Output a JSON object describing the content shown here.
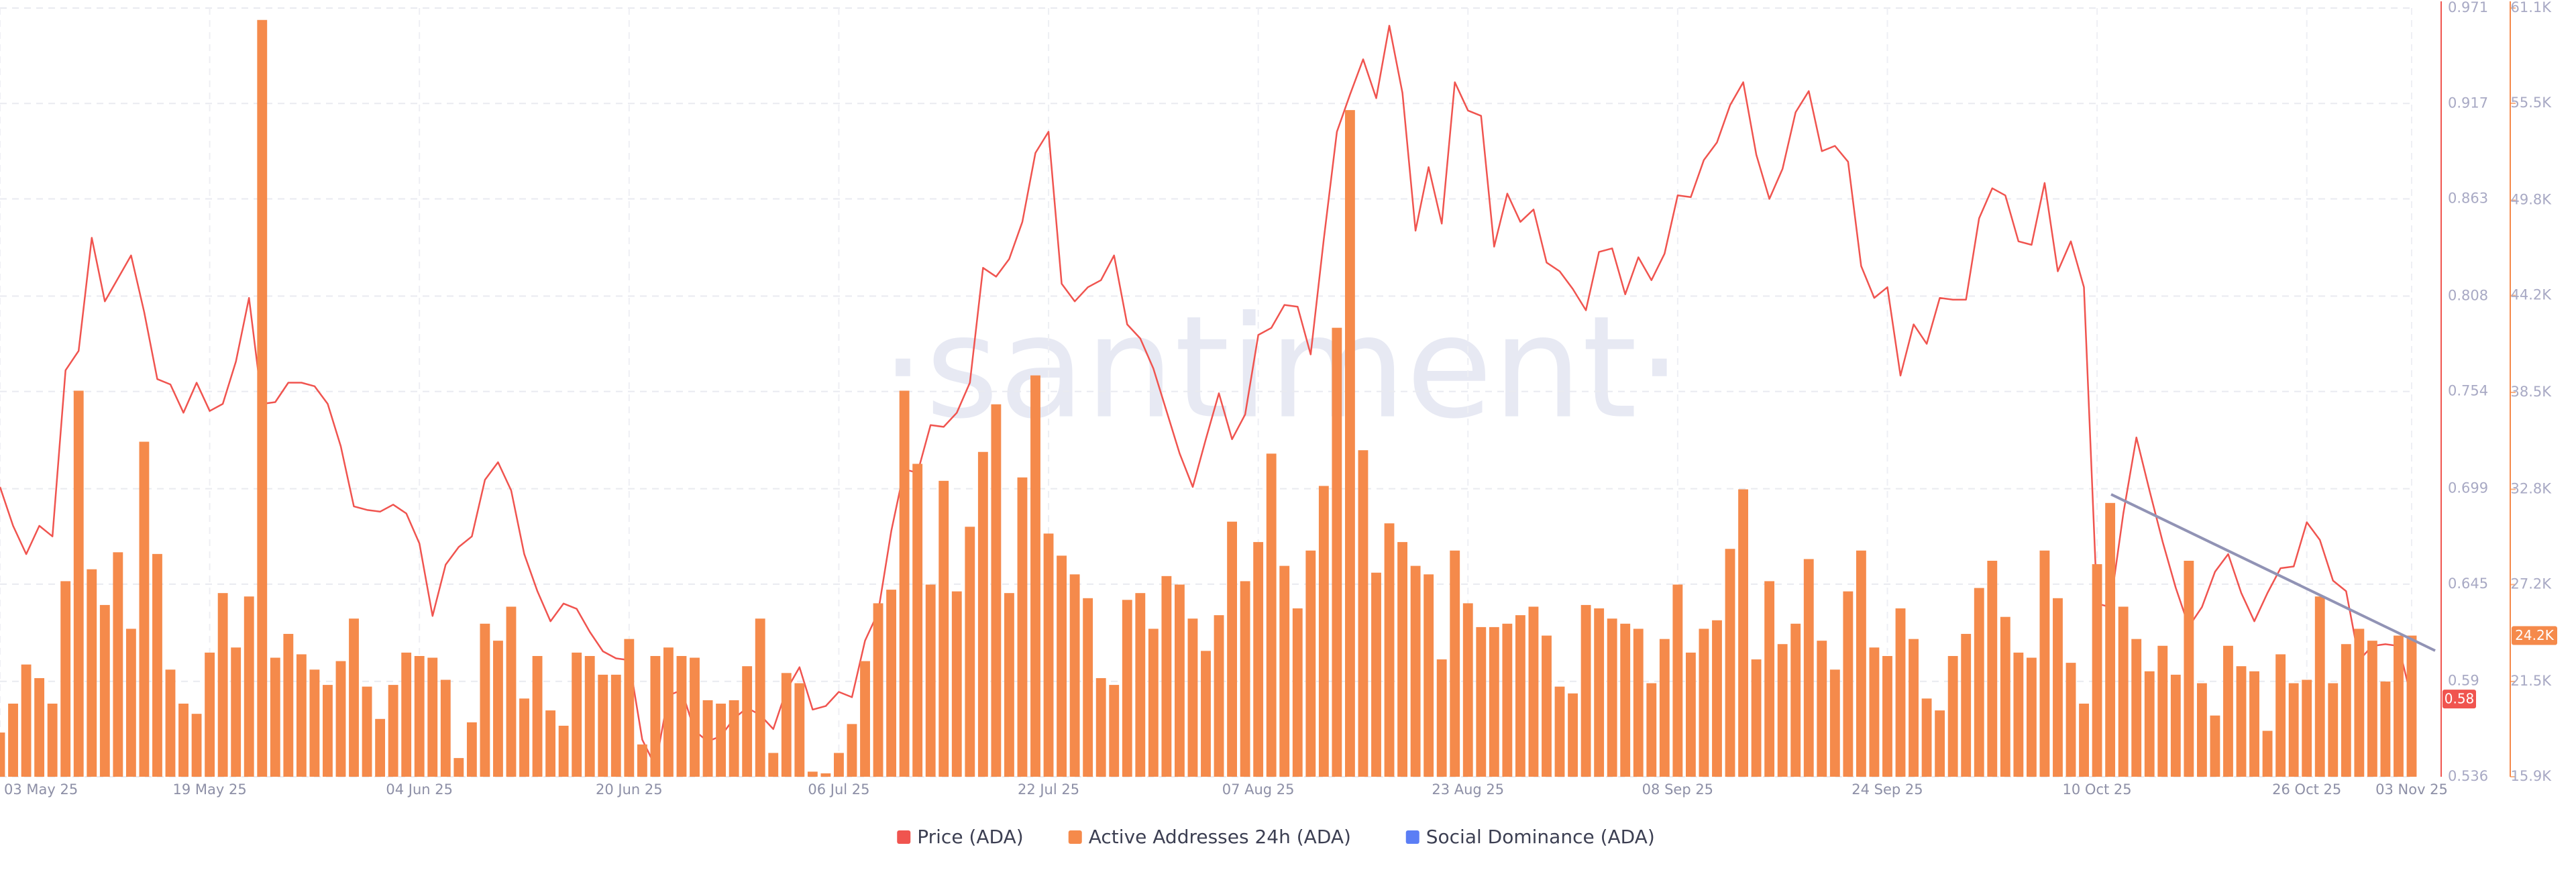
{
  "chart_data": {
    "type": "bar-line",
    "watermark": "·santiment·",
    "x": [
      "2025-05-03",
      "2025-05-04",
      "2025-05-05",
      "2025-05-06",
      "2025-05-07",
      "2025-05-08",
      "2025-05-09",
      "2025-05-10",
      "2025-05-11",
      "2025-05-12",
      "2025-05-13",
      "2025-05-14",
      "2025-05-15",
      "2025-05-16",
      "2025-05-17",
      "2025-05-18",
      "2025-05-19",
      "2025-05-20",
      "2025-05-21",
      "2025-05-22",
      "2025-05-23",
      "2025-05-24",
      "2025-05-25",
      "2025-05-26",
      "2025-05-27",
      "2025-05-28",
      "2025-05-29",
      "2025-05-30",
      "2025-05-31",
      "2025-06-01",
      "2025-06-02",
      "2025-06-03",
      "2025-06-04",
      "2025-06-05",
      "2025-06-06",
      "2025-06-07",
      "2025-06-08",
      "2025-06-09",
      "2025-06-10",
      "2025-06-11",
      "2025-06-12",
      "2025-06-13",
      "2025-06-14",
      "2025-06-15",
      "2025-06-16",
      "2025-06-17",
      "2025-06-18",
      "2025-06-19",
      "2025-06-20",
      "2025-06-21",
      "2025-06-22",
      "2025-06-23",
      "2025-06-24",
      "2025-06-25",
      "2025-06-26",
      "2025-06-27",
      "2025-06-28",
      "2025-06-29",
      "2025-06-30",
      "2025-07-01",
      "2025-07-02",
      "2025-07-03",
      "2025-07-04",
      "2025-07-05",
      "2025-07-06",
      "2025-07-07",
      "2025-07-08",
      "2025-07-09",
      "2025-07-10",
      "2025-07-11",
      "2025-07-12",
      "2025-07-13",
      "2025-07-14",
      "2025-07-15",
      "2025-07-16",
      "2025-07-17",
      "2025-07-18",
      "2025-07-19",
      "2025-07-20",
      "2025-07-21",
      "2025-07-22",
      "2025-07-23",
      "2025-07-24",
      "2025-07-25",
      "2025-07-26",
      "2025-07-27",
      "2025-07-28",
      "2025-07-29",
      "2025-07-30",
      "2025-07-31",
      "2025-08-01",
      "2025-08-02",
      "2025-08-03",
      "2025-08-04",
      "2025-08-05",
      "2025-08-06",
      "2025-08-07",
      "2025-08-08",
      "2025-08-09",
      "2025-08-10",
      "2025-08-11",
      "2025-08-12",
      "2025-08-13",
      "2025-08-14",
      "2025-08-15",
      "2025-08-16",
      "2025-08-17",
      "2025-08-18",
      "2025-08-19",
      "2025-08-20",
      "2025-08-21",
      "2025-08-22",
      "2025-08-23",
      "2025-08-24",
      "2025-08-25",
      "2025-08-26",
      "2025-08-27",
      "2025-08-28",
      "2025-08-29",
      "2025-08-30",
      "2025-08-31",
      "2025-09-01",
      "2025-09-02",
      "2025-09-03",
      "2025-09-04",
      "2025-09-05",
      "2025-09-06",
      "2025-09-07",
      "2025-09-08",
      "2025-09-09",
      "2025-09-10",
      "2025-09-11",
      "2025-09-12",
      "2025-09-13",
      "2025-09-14",
      "2025-09-15",
      "2025-09-16",
      "2025-09-17",
      "2025-09-18",
      "2025-09-19",
      "2025-09-20",
      "2025-09-21",
      "2025-09-22",
      "2025-09-23",
      "2025-09-24",
      "2025-09-25",
      "2025-09-26",
      "2025-09-27",
      "2025-09-28",
      "2025-09-29",
      "2025-09-30",
      "2025-10-01",
      "2025-10-02",
      "2025-10-03",
      "2025-10-04",
      "2025-10-05",
      "2025-10-06",
      "2025-10-07",
      "2025-10-08",
      "2025-10-09",
      "2025-10-10",
      "2025-10-11",
      "2025-10-12",
      "2025-10-13",
      "2025-10-14",
      "2025-10-15",
      "2025-10-16",
      "2025-10-17",
      "2025-10-18",
      "2025-10-19",
      "2025-10-20",
      "2025-10-21",
      "2025-10-22",
      "2025-10-23",
      "2025-10-24",
      "2025-10-25",
      "2025-10-26",
      "2025-10-27",
      "2025-10-28",
      "2025-10-29",
      "2025-10-30",
      "2025-10-31",
      "2025-11-01",
      "2025-11-02",
      "2025-11-03"
    ],
    "xlim": [
      "2025-05-03",
      "2025-11-03"
    ],
    "xticks": [
      {
        "value": "2025-05-03",
        "label": "03 May 25"
      },
      {
        "value": "2025-05-19",
        "label": "19 May 25"
      },
      {
        "value": "2025-06-04",
        "label": "04 Jun 25"
      },
      {
        "value": "2025-06-20",
        "label": "20 Jun 25"
      },
      {
        "value": "2025-07-06",
        "label": "06 Jul 25"
      },
      {
        "value": "2025-07-22",
        "label": "22 Jul 25"
      },
      {
        "value": "2025-08-07",
        "label": "07 Aug 25"
      },
      {
        "value": "2025-08-23",
        "label": "23 Aug 25"
      },
      {
        "value": "2025-09-08",
        "label": "08 Sep 25"
      },
      {
        "value": "2025-09-24",
        "label": "24 Sep 25"
      },
      {
        "value": "2025-10-10",
        "label": "10 Oct 25"
      },
      {
        "value": "2025-10-26",
        "label": "26 Oct 25"
      },
      {
        "value": "2025-11-03",
        "label": "03 Nov 25"
      }
    ],
    "ylim": [
      0.536,
      0.971
    ],
    "yticks": [
      0.536,
      0.59,
      0.645,
      0.699,
      0.754,
      0.808,
      0.863,
      0.917,
      0.971
    ],
    "y2lim": [
      15900,
      61100
    ],
    "y2ticks": [
      {
        "value": 15900,
        "label": "15.9K"
      },
      {
        "value": 21500,
        "label": "21.5K"
      },
      {
        "value": 27200,
        "label": "27.2K"
      },
      {
        "value": 32800,
        "label": "32.8K"
      },
      {
        "value": 38500,
        "label": "38.5K"
      },
      {
        "value": 44200,
        "label": "44.2K"
      },
      {
        "value": 49800,
        "label": "49.8K"
      },
      {
        "value": 55500,
        "label": "55.5K"
      },
      {
        "value": 61100,
        "label": "61.1K"
      }
    ],
    "grid": true,
    "series": [
      {
        "name": "Price (ADA)",
        "type": "line",
        "axis": "y",
        "color": "#f0544f",
        "last_label": "0.58",
        "values": [
          0.7,
          0.678,
          0.662,
          0.678,
          0.672,
          0.766,
          0.777,
          0.841,
          0.805,
          0.818,
          0.831,
          0.799,
          0.761,
          0.758,
          0.742,
          0.759,
          0.743,
          0.747,
          0.771,
          0.807,
          0.747,
          0.748,
          0.759,
          0.759,
          0.757,
          0.747,
          0.723,
          0.689,
          0.687,
          0.686,
          0.69,
          0.685,
          0.668,
          0.627,
          0.656,
          0.666,
          0.672,
          0.704,
          0.714,
          0.698,
          0.662,
          0.641,
          0.624,
          0.634,
          0.631,
          0.618,
          0.607,
          0.603,
          0.602,
          0.557,
          0.542,
          0.582,
          0.585,
          0.562,
          0.556,
          0.559,
          0.569,
          0.575,
          0.571,
          0.563,
          0.585,
          0.598,
          0.574,
          0.576,
          0.584,
          0.581,
          0.613,
          0.629,
          0.675,
          0.71,
          0.708,
          0.735,
          0.734,
          0.742,
          0.759,
          0.824,
          0.819,
          0.829,
          0.85,
          0.889,
          0.901,
          0.815,
          0.805,
          0.813,
          0.817,
          0.831,
          0.792,
          0.784,
          0.767,
          0.743,
          0.719,
          0.7,
          0.727,
          0.753,
          0.727,
          0.741,
          0.786,
          0.79,
          0.803,
          0.802,
          0.775,
          0.84,
          0.901,
          0.922,
          0.942,
          0.92,
          0.961,
          0.923,
          0.845,
          0.881,
          0.849,
          0.929,
          0.913,
          0.91,
          0.836,
          0.866,
          0.85,
          0.857,
          0.827,
          0.822,
          0.812,
          0.8,
          0.833,
          0.835,
          0.809,
          0.83,
          0.817,
          0.832,
          0.865,
          0.864,
          0.885,
          0.895,
          0.916,
          0.929,
          0.888,
          0.863,
          0.88,
          0.912,
          0.924,
          0.89,
          0.893,
          0.884,
          0.825,
          0.807,
          0.813,
          0.763,
          0.792,
          0.781,
          0.807,
          0.806,
          0.806,
          0.852,
          0.869,
          0.865,
          0.839,
          0.837,
          0.872,
          0.822,
          0.839,
          0.813,
          0.634,
          0.632,
          0.685,
          0.728,
          0.698,
          0.669,
          0.643,
          0.621,
          0.632,
          0.652,
          0.662,
          0.64,
          0.624,
          0.64,
          0.654,
          0.655,
          0.68,
          0.67,
          0.647,
          0.641,
          0.602,
          0.61,
          0.611,
          0.61,
          0.58
        ]
      },
      {
        "name": "Active Addresses 24h (ADA)",
        "type": "bar",
        "axis": "y2",
        "color": "#f58a4b",
        "last_label": "24.2K",
        "values": [
          18500,
          20200,
          22500,
          21700,
          20200,
          27400,
          38600,
          28100,
          26000,
          29100,
          24600,
          35600,
          29000,
          22200,
          20200,
          19600,
          23200,
          26700,
          23500,
          26500,
          60400,
          22900,
          24300,
          23100,
          22200,
          21300,
          22700,
          25200,
          21200,
          19300,
          21300,
          23200,
          23000,
          22900,
          21600,
          17000,
          19100,
          24900,
          23900,
          25900,
          20500,
          23000,
          19800,
          18900,
          23200,
          23000,
          21900,
          21900,
          24000,
          17800,
          23000,
          23500,
          23000,
          22900,
          20400,
          20200,
          20400,
          22400,
          25200,
          17300,
          22000,
          21400,
          16200,
          16100,
          17300,
          19000,
          22700,
          26100,
          26900,
          38600,
          34300,
          27200,
          33300,
          26800,
          30600,
          35000,
          37800,
          26700,
          33500,
          39500,
          30200,
          28900,
          27800,
          26400,
          21700,
          21300,
          26300,
          26700,
          24600,
          27700,
          27200,
          25200,
          23300,
          25400,
          30900,
          27400,
          29700,
          34900,
          28300,
          25800,
          29200,
          33000,
          42300,
          55100,
          35100,
          27900,
          30800,
          29700,
          28300,
          27800,
          22800,
          29200,
          26100,
          24700,
          24700,
          24900,
          25400,
          25900,
          24200,
          21200,
          20800,
          26000,
          25800,
          25200,
          24900,
          24600,
          21400,
          24000,
          27200,
          23200,
          24600,
          25100,
          29300,
          32800,
          22800,
          27400,
          23700,
          24900,
          28700,
          23900,
          22200,
          26800,
          29200,
          23500,
          23000,
          25800,
          24000,
          20500,
          19800,
          23000,
          24300,
          27000,
          28600,
          25300,
          23200,
          22900,
          29200,
          26400,
          22600,
          20200,
          28400,
          32000,
          25900,
          24000,
          22100,
          23600,
          21900,
          28600,
          21400,
          19500,
          23600,
          22400,
          22100,
          18600,
          23100,
          21400,
          21600,
          26500,
          21400,
          23700,
          24600,
          23900,
          21500,
          24200,
          24200
        ]
      },
      {
        "name": "Social Dominance (ADA)",
        "color": "#5b7ef5"
      }
    ]
  }
}
